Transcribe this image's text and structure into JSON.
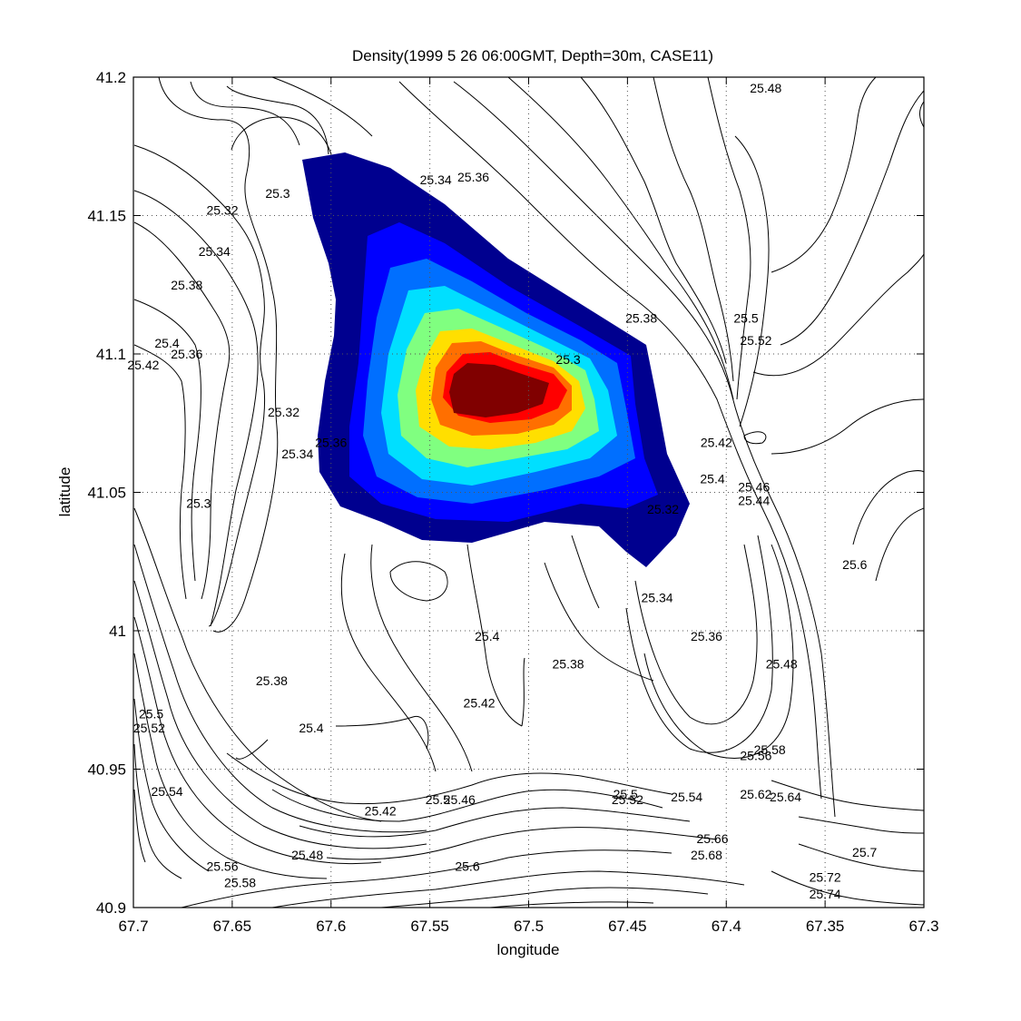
{
  "chart_data": {
    "type": "contour",
    "title": "Density(1999   5   26 06:00GMT, Depth=30m, CASE11)",
    "xlabel": "longitude",
    "ylabel": "latitude",
    "xlim": [
      67.7,
      67.3
    ],
    "ylim": [
      40.9,
      41.2
    ],
    "grid": true,
    "x_ticks": [
      "67.7",
      "67.65",
      "67.6",
      "67.55",
      "67.5",
      "67.45",
      "67.4",
      "67.35",
      "67.3"
    ],
    "y_ticks": [
      "40.9",
      "40.95",
      "41",
      "41.05",
      "41.1",
      "41.15",
      "41.2"
    ],
    "filled_region": {
      "description_levels": 9,
      "colors": [
        "#00008f",
        "#0000ff",
        "#006fff",
        "#00dfff",
        "#80ff80",
        "#ffdf00",
        "#ff6f00",
        "#ff0000",
        "#800000"
      ],
      "center": [
        67.515,
        41.087
      ]
    },
    "contour_labels": [
      {
        "text": "25.48",
        "x": 67.38,
        "y": 41.196
      },
      {
        "text": "25.34",
        "x": 67.547,
        "y": 41.163
      },
      {
        "text": "25.36",
        "x": 67.528,
        "y": 41.164
      },
      {
        "text": "25.3",
        "x": 67.627,
        "y": 41.158
      },
      {
        "text": "25.32",
        "x": 67.655,
        "y": 41.152
      },
      {
        "text": "25.34",
        "x": 67.659,
        "y": 41.137
      },
      {
        "text": "25.38",
        "x": 67.673,
        "y": 41.125
      },
      {
        "text": "25.38",
        "x": 67.443,
        "y": 41.113
      },
      {
        "text": "25.5",
        "x": 67.39,
        "y": 41.113
      },
      {
        "text": "25.52",
        "x": 67.385,
        "y": 41.105
      },
      {
        "text": "25.4",
        "x": 67.683,
        "y": 41.104
      },
      {
        "text": "25.36",
        "x": 67.673,
        "y": 41.1
      },
      {
        "text": "25.42",
        "x": 67.695,
        "y": 41.096
      },
      {
        "text": "25.3",
        "x": 67.48,
        "y": 41.098
      },
      {
        "text": "25.32",
        "x": 67.624,
        "y": 41.079
      },
      {
        "text": "25.42",
        "x": 67.405,
        "y": 41.068
      },
      {
        "text": "25.34",
        "x": 67.617,
        "y": 41.064
      },
      {
        "text": "25.36",
        "x": 67.6,
        "y": 41.068
      },
      {
        "text": "25.4",
        "x": 67.407,
        "y": 41.055
      },
      {
        "text": "25.46",
        "x": 67.386,
        "y": 41.052
      },
      {
        "text": "25.44",
        "x": 67.386,
        "y": 41.047
      },
      {
        "text": "25.3",
        "x": 67.667,
        "y": 41.046
      },
      {
        "text": "25.32",
        "x": 67.432,
        "y": 41.044
      },
      {
        "text": "25.6",
        "x": 67.335,
        "y": 41.024
      },
      {
        "text": "25.34",
        "x": 67.435,
        "y": 41.012
      },
      {
        "text": "25.4",
        "x": 67.521,
        "y": 40.998
      },
      {
        "text": "25.36",
        "x": 67.41,
        "y": 40.998
      },
      {
        "text": "25.38",
        "x": 67.48,
        "y": 40.988
      },
      {
        "text": "25.48",
        "x": 67.372,
        "y": 40.988
      },
      {
        "text": "25.38",
        "x": 67.63,
        "y": 40.982
      },
      {
        "text": "25.42",
        "x": 67.525,
        "y": 40.974
      },
      {
        "text": "25.5",
        "x": 67.691,
        "y": 40.97
      },
      {
        "text": "25.52",
        "x": 67.692,
        "y": 40.965
      },
      {
        "text": "25.4",
        "x": 67.61,
        "y": 40.965
      },
      {
        "text": "25.58",
        "x": 67.378,
        "y": 40.957
      },
      {
        "text": "25.56",
        "x": 67.385,
        "y": 40.955
      },
      {
        "text": "25.54",
        "x": 67.683,
        "y": 40.942
      },
      {
        "text": "25.42",
        "x": 67.575,
        "y": 40.935
      },
      {
        "text": "25.5",
        "x": 67.546,
        "y": 40.939
      },
      {
        "text": "25.46",
        "x": 67.535,
        "y": 40.939
      },
      {
        "text": "25.5",
        "x": 67.451,
        "y": 40.941
      },
      {
        "text": "25.52",
        "x": 67.45,
        "y": 40.939
      },
      {
        "text": "25.54",
        "x": 67.42,
        "y": 40.94
      },
      {
        "text": "25.62",
        "x": 67.385,
        "y": 40.941
      },
      {
        "text": "25.64",
        "x": 67.37,
        "y": 40.94
      },
      {
        "text": "25.66",
        "x": 67.407,
        "y": 40.925
      },
      {
        "text": "25.68",
        "x": 67.41,
        "y": 40.919
      },
      {
        "text": "25.7",
        "x": 67.33,
        "y": 40.92
      },
      {
        "text": "25.48",
        "x": 67.612,
        "y": 40.919
      },
      {
        "text": "25.6",
        "x": 67.531,
        "y": 40.915
      },
      {
        "text": "25.56",
        "x": 67.655,
        "y": 40.915
      },
      {
        "text": "25.58",
        "x": 67.646,
        "y": 40.909
      },
      {
        "text": "25.72",
        "x": 67.35,
        "y": 40.911
      },
      {
        "text": "25.74",
        "x": 67.35,
        "y": 40.905
      }
    ]
  }
}
